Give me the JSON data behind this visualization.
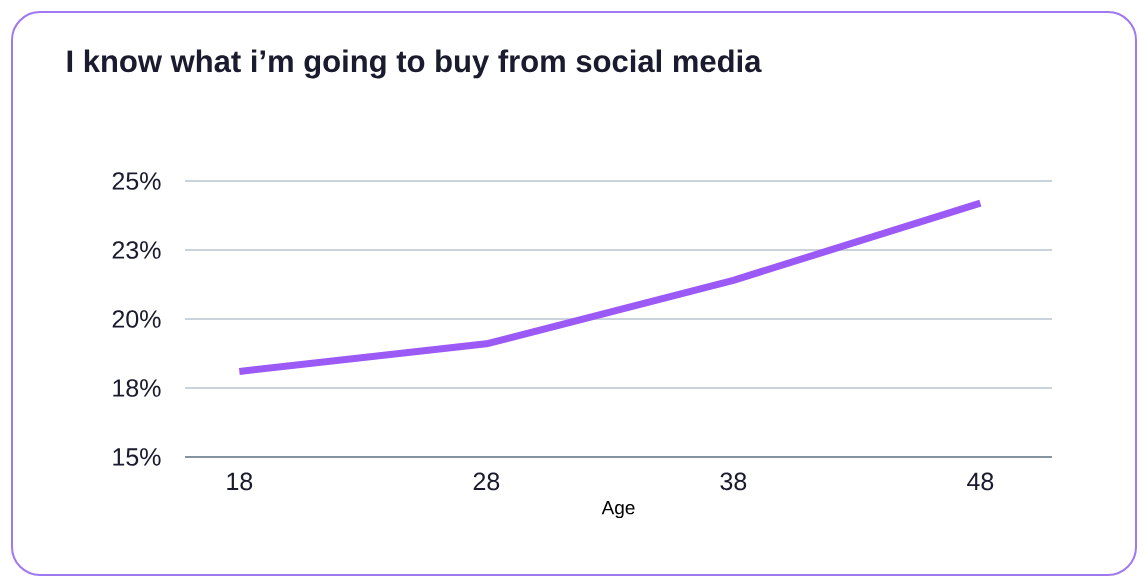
{
  "chart_data": {
    "type": "line",
    "title": "I know what i’m going to buy from social media",
    "xlabel": "Age",
    "categories": [
      "18",
      "28",
      "38",
      "48"
    ],
    "series": [
      {
        "color": "#9b59f6",
        "values": [
          18.1,
          19.1,
          21.4,
          24.2
        ]
      }
    ],
    "ylim": [
      15,
      25
    ],
    "yticks": [
      {
        "value": 15,
        "label": "15%"
      },
      {
        "value": 17.5,
        "label": "18%"
      },
      {
        "value": 20,
        "label": "20%"
      },
      {
        "value": 22.5,
        "label": "23%"
      },
      {
        "value": 25,
        "label": "25%"
      }
    ],
    "grid": "y",
    "marker": "none",
    "line_style": "solid"
  }
}
